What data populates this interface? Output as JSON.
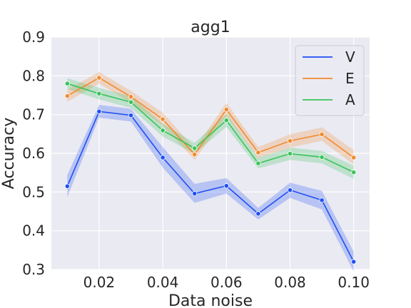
{
  "chart_data": {
    "type": "line",
    "title": "agg1",
    "xlabel": "Data noise",
    "ylabel": "Accuracy",
    "xlim": [
      0.005,
      0.105
    ],
    "ylim": [
      0.3,
      0.9
    ],
    "xticks": [
      "0.02",
      "0.04",
      "0.06",
      "0.08",
      "0.10"
    ],
    "yticks": [
      "0.3",
      "0.4",
      "0.5",
      "0.6",
      "0.7",
      "0.8",
      "0.9"
    ],
    "grid": true,
    "background": "#eaeaf2",
    "legend_position": "top-right",
    "x": [
      0.01,
      0.02,
      0.03,
      0.04,
      0.05,
      0.06,
      0.07,
      0.08,
      0.09,
      0.1
    ],
    "series": [
      {
        "name": "V",
        "color": "#1f4ff5",
        "values": [
          0.515,
          0.708,
          0.698,
          0.589,
          0.496,
          0.516,
          0.444,
          0.505,
          0.479,
          0.32
        ],
        "lower": [
          0.487,
          0.692,
          0.682,
          0.563,
          0.472,
          0.496,
          0.429,
          0.485,
          0.455,
          0.295
        ],
        "upper": [
          0.544,
          0.725,
          0.715,
          0.616,
          0.521,
          0.536,
          0.459,
          0.524,
          0.503,
          0.346
        ]
      },
      {
        "name": "E",
        "color": "#f28a2e",
        "values": [
          0.748,
          0.795,
          0.746,
          0.688,
          0.597,
          0.713,
          0.602,
          0.632,
          0.649,
          0.589
        ],
        "lower": [
          0.733,
          0.78,
          0.731,
          0.671,
          0.583,
          0.696,
          0.588,
          0.615,
          0.632,
          0.571
        ],
        "upper": [
          0.764,
          0.81,
          0.761,
          0.705,
          0.612,
          0.73,
          0.616,
          0.649,
          0.667,
          0.608
        ]
      },
      {
        "name": "A",
        "color": "#3ac45a",
        "values": [
          0.78,
          0.754,
          0.732,
          0.659,
          0.613,
          0.685,
          0.574,
          0.599,
          0.59,
          0.551
        ],
        "lower": [
          0.766,
          0.739,
          0.717,
          0.643,
          0.599,
          0.668,
          0.561,
          0.583,
          0.574,
          0.534
        ],
        "upper": [
          0.794,
          0.769,
          0.747,
          0.676,
          0.627,
          0.702,
          0.588,
          0.615,
          0.606,
          0.568
        ]
      }
    ]
  }
}
